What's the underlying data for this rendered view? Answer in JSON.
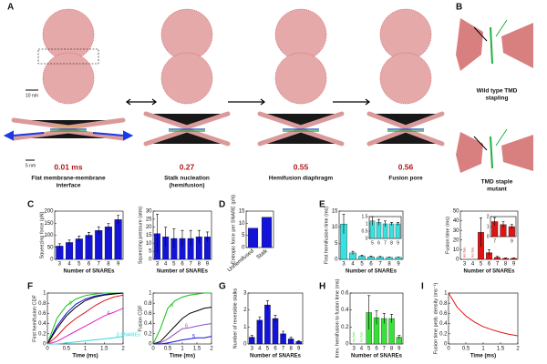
{
  "panel_labels": [
    "A",
    "B",
    "C",
    "D",
    "E",
    "F",
    "G",
    "H",
    "I"
  ],
  "panel_a": {
    "scale_bars": [
      "10 nm",
      "5 nm"
    ],
    "times": [
      "0.01 ms",
      "0.27",
      "0.55",
      "0.56"
    ],
    "captions": [
      [
        "Flat membrane-membrane",
        "interface"
      ],
      [
        "Stalk nucleation",
        "(hemifusion)"
      ],
      [
        "Hemifusion diaphragm"
      ],
      [
        "Fusion pore"
      ]
    ]
  },
  "panel_b": {
    "captions": [
      [
        "Wild type TMD",
        "stapling"
      ],
      [
        "TMD staple",
        "mutant"
      ]
    ]
  },
  "chart_data": [
    {
      "type": "bar",
      "ylabel": "Squeezing force (pN)",
      "xlabel": "Number of SNAREs",
      "categories": [
        "3",
        "4",
        "5",
        "6",
        "7",
        "8",
        "9"
      ],
      "values": [
        55,
        70,
        85,
        100,
        120,
        135,
        165
      ],
      "errors": [
        10,
        10,
        12,
        12,
        15,
        15,
        18
      ],
      "color": "#1414d8",
      "ylim": [
        0,
        200
      ],
      "yticks": [
        0,
        50,
        100,
        150,
        200
      ]
    },
    {
      "type": "bar",
      "ylabel": "Squeezing pressure (atm)",
      "xlabel": "Number of SNAREs",
      "categories": [
        "3",
        "4",
        "5",
        "6",
        "7",
        "8",
        "9"
      ],
      "values": [
        16,
        14,
        13,
        13,
        13,
        14,
        14
      ],
      "errors": [
        12,
        6,
        6,
        5,
        5,
        4,
        3
      ],
      "color": "#1414d8",
      "ylim": [
        0,
        30
      ],
      "yticks": [
        0,
        5,
        10,
        15,
        20,
        25,
        30
      ]
    },
    {
      "type": "bar",
      "ylabel": "Entropic force per SNARE (pN)",
      "categories": [
        "Unhemifused",
        "Stalk"
      ],
      "values": [
        8,
        12.5
      ],
      "color": "#1414d8",
      "ylim": [
        0,
        15
      ],
      "yticks": [
        0,
        5,
        10,
        15
      ]
    },
    {
      "type": "bar",
      "ylabel": "First hemifusion time (ms)",
      "xlabel": "Number of SNAREs",
      "categories": [
        "3",
        "4",
        "5",
        "6",
        "7",
        "8",
        "9"
      ],
      "values": [
        11,
        2,
        1,
        0.8,
        0.7,
        0.6,
        0.6
      ],
      "errors": [
        3,
        0.5,
        0.3,
        0.2,
        0.2,
        0.1,
        0.1
      ],
      "color": "#38e0e0",
      "ylim": [
        0,
        15
      ],
      "yticks": [
        0,
        5,
        10,
        15
      ],
      "inset": {
        "type": "bar",
        "categories": [
          "5",
          "6",
          "7",
          "8",
          "9"
        ],
        "values": [
          1.2,
          1.1,
          1,
          1,
          1
        ],
        "errors": [
          0.3,
          0.2,
          0.2,
          0.1,
          0.1
        ],
        "color": "#38e0e0",
        "ylim": [
          0,
          1.5
        ],
        "yticks": [
          0,
          0.5,
          1,
          1.5
        ]
      }
    },
    {
      "type": "bar",
      "ylabel": "Fusion time (ms)",
      "xlabel": "Number of SNAREs",
      "categories": [
        "3",
        "4",
        "5",
        "6",
        "7",
        "8",
        "9"
      ],
      "values": [
        null,
        null,
        28,
        7,
        2,
        1,
        1
      ],
      "errors": [
        null,
        null,
        15,
        3,
        1,
        0.5,
        0.5
      ],
      "notes": [
        "no fus.",
        "no fus.",
        null,
        null,
        null,
        null,
        null
      ],
      "color": "#e01414",
      "ylim": [
        0,
        50
      ],
      "yticks": [
        0,
        10,
        20,
        30,
        40,
        50
      ],
      "inset": {
        "type": "bar",
        "categories": [
          "7",
          null,
          "9"
        ],
        "values": [
          1.5,
          1.2,
          1
        ],
        "errors": [
          0.4,
          0.3,
          0.2
        ],
        "color": "#e01414",
        "ylim": [
          0,
          2
        ],
        "yticks": [
          0,
          1,
          2
        ]
      }
    },
    {
      "type": "line",
      "ylabel": "First hemifusion CDF",
      "xlabel": "Time (ms)",
      "x": [
        0,
        0.25,
        0.5,
        0.75,
        1,
        1.25,
        1.5,
        1.75,
        2
      ],
      "xlim": [
        0,
        2
      ],
      "xticks": [
        0,
        0.5,
        1,
        1.5,
        2
      ],
      "ylim": [
        0,
        1
      ],
      "yticks": [
        0,
        0.2,
        0.4,
        0.6,
        0.8,
        1
      ],
      "series": [
        {
          "name": "9",
          "color": "#10c010",
          "values": [
            0,
            0.5,
            0.75,
            0.88,
            0.95,
            0.98,
            1,
            1,
            1
          ]
        },
        {
          "color": "#1414d8",
          "values": [
            0,
            0.35,
            0.6,
            0.78,
            0.88,
            0.94,
            0.97,
            0.99,
            1
          ]
        },
        {
          "color": "#000000",
          "values": [
            0,
            0.3,
            0.55,
            0.72,
            0.85,
            0.92,
            0.96,
            0.98,
            1
          ]
        },
        {
          "color": "#e01414",
          "values": [
            0,
            0.15,
            0.35,
            0.5,
            0.62,
            0.75,
            0.85,
            0.92,
            0.96
          ]
        },
        {
          "name": "4",
          "color": "#e020c0",
          "values": [
            0,
            0.05,
            0.15,
            0.25,
            0.35,
            0.45,
            0.55,
            0.62,
            0.7
          ]
        },
        {
          "name": "3 SNAREs",
          "color": "#30d8e0",
          "values": [
            0,
            0,
            0.02,
            0.04,
            0.06,
            0.08,
            0.1,
            0.12,
            0.15
          ]
        }
      ]
    },
    {
      "type": "line",
      "ylabel": "Fusion CDF",
      "xlabel": "Time (ms)",
      "x": [
        0,
        0.25,
        0.5,
        0.75,
        1,
        1.25,
        1.5,
        1.75,
        2
      ],
      "xlim": [
        0,
        2
      ],
      "xticks": [
        0,
        0.5,
        1,
        1.5,
        2
      ],
      "ylim": [
        0,
        1
      ],
      "yticks": [
        0,
        0.2,
        0.4,
        0.6,
        0.8,
        1
      ],
      "series": [
        {
          "name": "9",
          "color": "#10c010",
          "values": [
            0,
            0.3,
            0.7,
            0.85,
            0.92,
            0.96,
            0.98,
            1,
            1
          ]
        },
        {
          "color": "#000000",
          "values": [
            0,
            0.05,
            0.2,
            0.35,
            0.5,
            0.6,
            0.65,
            0.7,
            0.72
          ]
        },
        {
          "name": "6",
          "color": "#9050c0",
          "values": [
            0,
            0.02,
            0.1,
            0.2,
            0.3,
            0.32,
            0.35,
            0.38,
            0.4
          ]
        },
        {
          "name": "5",
          "color": "#1414d8",
          "values": [
            0,
            0,
            0.02,
            0.05,
            0.08,
            0.1,
            0.12,
            0.12,
            0.15
          ]
        }
      ]
    },
    {
      "type": "bar",
      "ylabel": "Number of reversible stalks",
      "xlabel": "Number of SNAREs",
      "categories": [
        "3",
        "4",
        "5",
        "6",
        "7",
        "8",
        "9"
      ],
      "values": [
        0.4,
        1.4,
        2.3,
        1.5,
        0.6,
        0.3,
        0.15
      ],
      "errors": [
        0.1,
        0.2,
        0.25,
        0.2,
        0.15,
        0.1,
        0.05
      ],
      "color": "#1414d8",
      "ylim": [
        0,
        3
      ],
      "yticks": [
        0,
        1,
        2,
        3
      ]
    },
    {
      "type": "bar",
      "ylabel": "Irrev. hemifusion to fusion time (ms)",
      "xlabel": "Number of SNAREs",
      "categories": [
        "3",
        "4",
        "5",
        "6",
        "7",
        "8",
        "9"
      ],
      "values": [
        null,
        null,
        0.37,
        0.31,
        0.3,
        0.3,
        0.08
      ],
      "errors": [
        null,
        null,
        0.2,
        0.08,
        0.06,
        0.05,
        0.02
      ],
      "notes": [
        "no fus.",
        "no fus.",
        null,
        null,
        null,
        null,
        null
      ],
      "color": "#38e038",
      "ylim": [
        0,
        0.6
      ],
      "yticks": [
        0,
        0.2,
        0.4,
        0.6
      ]
    },
    {
      "type": "line",
      "ylabel": "Fusion time prob. density (ms⁻¹)",
      "xlabel": "Time (ms)",
      "x": [
        0,
        0.25,
        0.5,
        0.75,
        1,
        1.25,
        1.5,
        1.75,
        2
      ],
      "xlim": [
        0,
        2
      ],
      "xticks": [
        0,
        0.5,
        1,
        1.5,
        2
      ],
      "ylim": [
        0,
        1
      ],
      "yticks": [
        0,
        0.2,
        0.4,
        0.6,
        0.8,
        1
      ],
      "series": [
        {
          "color": "#e01414",
          "values": [
            1,
            0.72,
            0.55,
            0.43,
            0.34,
            0.28,
            0.23,
            0.19,
            0.16
          ]
        }
      ]
    }
  ]
}
